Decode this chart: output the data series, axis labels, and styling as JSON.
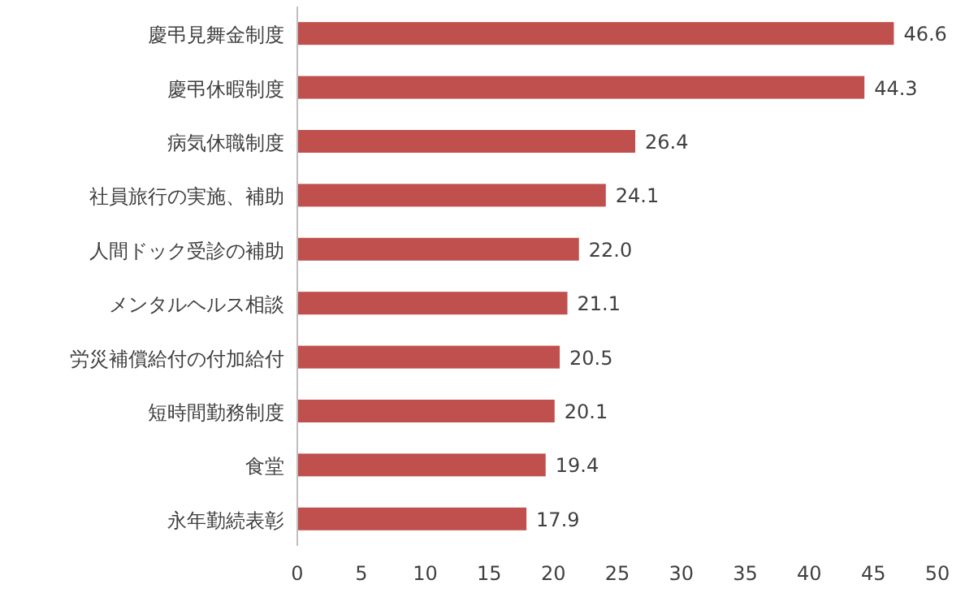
{
  "chart_data": {
    "type": "bar",
    "orientation": "horizontal",
    "categories": [
      "慶弔見舞金制度",
      "慶弔休暇制度",
      "病気休職制度",
      "社員旅行の実施、補助",
      "人間ドック受診の補助",
      "メンタルヘルス相談",
      "労災補償給付の付加給付",
      "短時間勤務制度",
      "食堂",
      "永年勤続表彰"
    ],
    "values": [
      46.6,
      44.3,
      26.4,
      24.1,
      22.0,
      21.1,
      20.5,
      20.1,
      19.4,
      17.9
    ],
    "value_labels": [
      "46.6",
      "44.3",
      "26.4",
      "24.1",
      "22.0",
      "21.1",
      "20.5",
      "20.1",
      "19.4",
      "17.9"
    ],
    "color": "#c0504d",
    "xlim": [
      0,
      50
    ],
    "xticks": [
      0,
      5,
      10,
      15,
      20,
      25,
      30,
      35,
      40,
      45,
      50
    ],
    "grid": false
  }
}
